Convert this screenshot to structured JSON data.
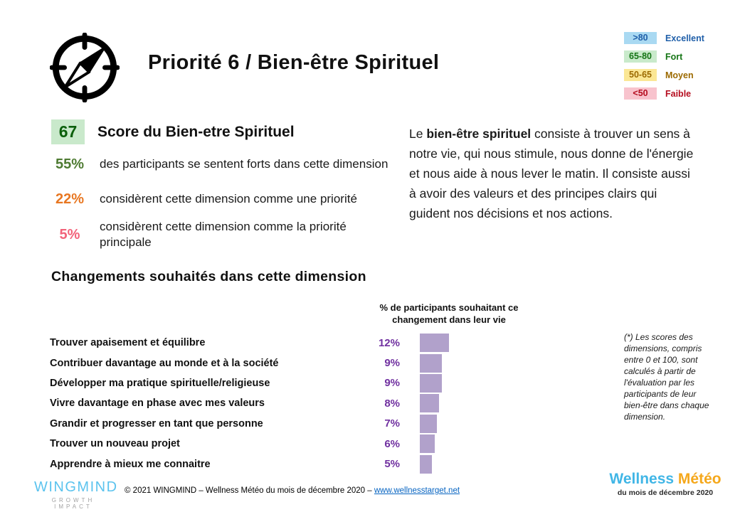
{
  "header": {
    "title": "Priorité 6 / Bien-être Spirituel",
    "legend": [
      {
        "range": ">80",
        "label": "Excellent",
        "bg": "#a9d9f2",
        "fg": "#1f5fa9"
      },
      {
        "range": "65-80",
        "label": "Fort",
        "bg": "#c9eacb",
        "fg": "#157515"
      },
      {
        "range": "50-65",
        "label": "Moyen",
        "bg": "#fbe795",
        "fg": "#9c6a00"
      },
      {
        "range": "<50",
        "label": "Faible",
        "bg": "#f8c3cd",
        "fg": "#b50d1f"
      }
    ]
  },
  "score": {
    "value": "67",
    "value_bg": "#c9e9cb",
    "value_color": "#0b5f0b",
    "title": "Score du Bien-etre Spirituel",
    "stats": [
      {
        "value": "55%",
        "color": "#4e7b32",
        "text": "des participants se sentent forts dans cette dimension"
      },
      {
        "value": "22%",
        "color": "#e87722",
        "text": "considèrent cette dimension comme une priorité"
      },
      {
        "value": "5%",
        "color": "#f2637a",
        "text": "considèrent cette dimension comme la priorité principale"
      }
    ]
  },
  "description": {
    "lead": "Le ",
    "bold": "bien-être spirituel",
    "rest": " consiste à trouver un sens à notre vie, qui nous stimule, nous donne de l'énergie et nous aide à nous lever le matin. Il consiste aussi à avoir des valeurs et des principes clairs qui guident nos décisions et nos actions."
  },
  "changes": {
    "heading": "Changements souhaités dans cette dimension",
    "chart_title": "% de participants souhaitant ce changement dans leur vie"
  },
  "chart_data": {
    "type": "bar",
    "orientation": "horizontal",
    "title": "% de participants souhaitant ce changement dans leur vie",
    "categories": [
      "Trouver apaisement et équilibre",
      "Contribuer davantage au monde et à la société",
      "Développer ma pratique spirituelle/religieuse",
      "Vivre davantage en phase avec mes valeurs",
      "Grandir et progresser en tant que personne",
      "Trouver un nouveau projet",
      "Apprendre à mieux me connaitre"
    ],
    "values": [
      12,
      9,
      9,
      8,
      7,
      6,
      5
    ],
    "value_labels": [
      "12%",
      "9%",
      "9%",
      "8%",
      "7%",
      "6%",
      "5%"
    ],
    "bar_color": "#b1a1cb",
    "value_label_color": "#7030a0",
    "xlim": [
      0,
      12
    ],
    "grid": false,
    "legend": "none"
  },
  "footnote": {
    "text": "(*) Les scores des dimensions, compris entre 0 et 100, sont calculés à partir de l'évaluation par les participants de leur bien-être dans chaque dimension."
  },
  "footer": {
    "wingmind_name": "WINGMIND",
    "wingmind_tag": "GROWTH IMPACT",
    "copyright_prefix": "© 2021 WINGMIND – Wellness Météo du mois de décembre 2020 – ",
    "link": "www.wellnesstarget.net",
    "brand_wellness": "Wellness",
    "brand_meteo": " Météo",
    "brand_sub": "du mois de décembre 2020"
  }
}
